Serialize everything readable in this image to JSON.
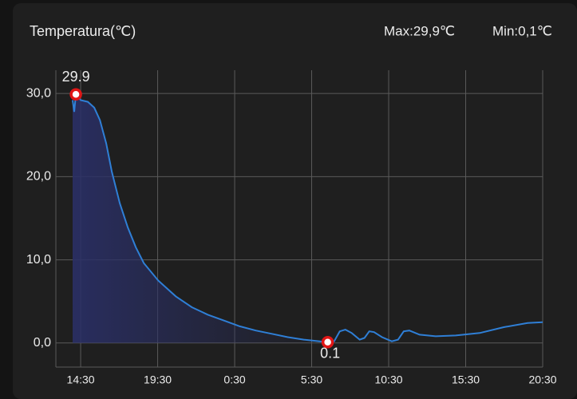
{
  "chart_data": {
    "type": "line",
    "title": "Temperatura(℃)",
    "max_label": "Max:29,9℃",
    "min_label": "Min:0,1℃",
    "x": [
      13.98,
      14.08,
      14.19,
      14.5,
      14.97,
      15.38,
      15.75,
      16.16,
      16.52,
      17.04,
      17.56,
      18.08,
      18.6,
      19.54,
      20.68,
      21.72,
      22.76,
      23.79,
      24.83,
      25.87,
      26.91,
      27.95,
      28.99,
      30.02,
      30.54,
      30.96,
      31.32,
      31.69,
      32.1,
      32.62,
      32.93,
      33.24,
      33.55,
      34.07,
      34.7,
      35.11,
      35.48,
      35.84,
      36.51,
      37.55,
      38.85,
      40.41,
      41.97,
      43.52,
      44.5
    ],
    "series": [
      {
        "color": "#2f7fd6",
        "values": [
          29.2,
          27.8,
          29.9,
          29.2,
          29.0,
          28.3,
          26.8,
          24.0,
          20.6,
          16.8,
          13.9,
          11.5,
          9.6,
          7.5,
          5.6,
          4.3,
          3.4,
          2.7,
          2.0,
          1.5,
          1.1,
          0.7,
          0.4,
          0.2,
          0.1,
          0.2,
          1.4,
          1.6,
          1.2,
          0.4,
          0.6,
          1.4,
          1.3,
          0.7,
          0.2,
          0.4,
          1.4,
          1.5,
          1.0,
          0.8,
          0.9,
          1.2,
          1.9,
          2.4,
          2.5
        ]
      }
    ],
    "annotations": [
      {
        "x": 14.19,
        "y": 29.9
      },
      {
        "x": 30.54,
        "y": 0.1
      }
    ],
    "xlim": [
      12.89,
      44.5
    ],
    "ylim": [
      -2.9,
      32.8
    ],
    "xticks": [
      {
        "value": 14.5,
        "label": "14:30"
      },
      {
        "value": 19.5,
        "label": "19:30"
      },
      {
        "value": 24.5,
        "label": "0:30"
      },
      {
        "value": 29.5,
        "label": "5:30"
      },
      {
        "value": 34.5,
        "label": "10:30"
      },
      {
        "value": 39.5,
        "label": "15:30"
      },
      {
        "value": 44.5,
        "label": "20:30"
      }
    ],
    "yticks": [
      {
        "value": 0,
        "label": "0,0"
      },
      {
        "value": 10,
        "label": "10,0"
      },
      {
        "value": 20,
        "label": "20,0"
      },
      {
        "value": 30,
        "label": "30,0"
      }
    ],
    "grid": true
  }
}
